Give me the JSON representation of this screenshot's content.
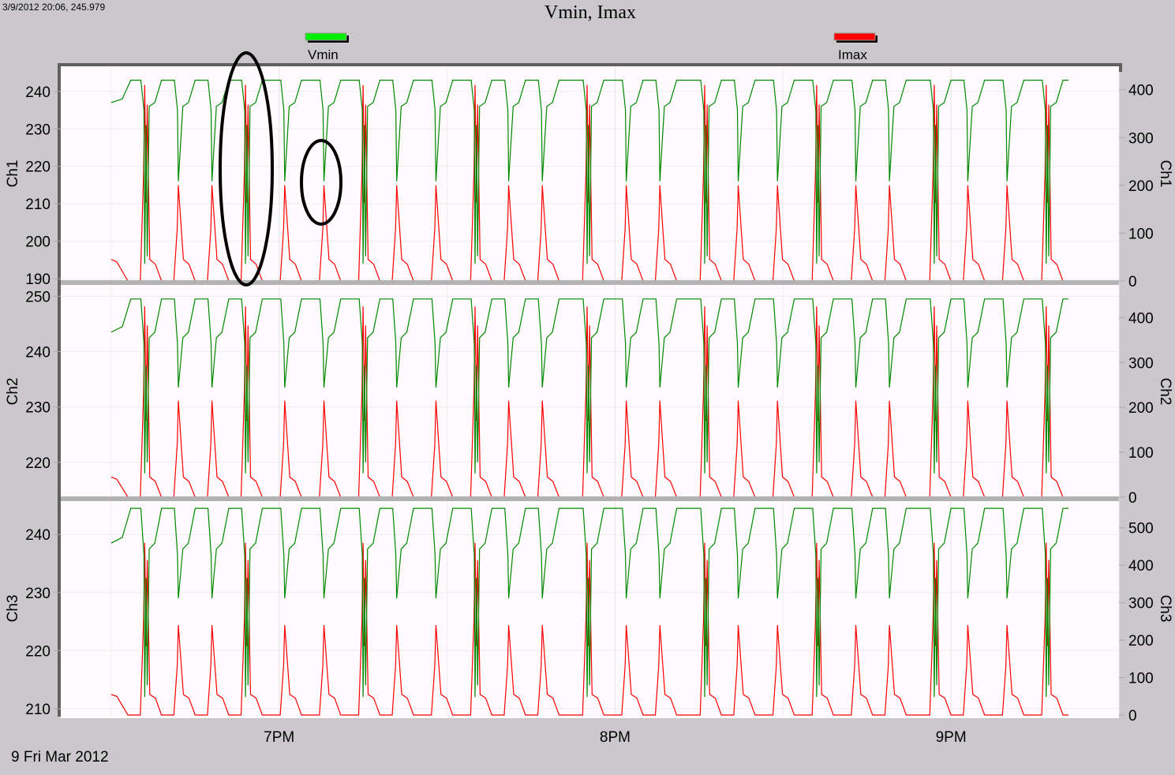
{
  "status_readout": "3/9/2012 20:06, 245.979",
  "date_label": "9 Fri Mar 2012",
  "chart_data": {
    "type": "line",
    "title": "Vmin, Imax",
    "legend": {
      "placement": "top",
      "entries": [
        {
          "name": "Vmin",
          "color": "#00ee00"
        },
        {
          "name": "Imax",
          "color": "#ff0000"
        }
      ]
    },
    "series_colors": {
      "Vmin": "#008800",
      "Imax": "#ff0000"
    },
    "grid": true,
    "x": {
      "type": "time",
      "xlim": [
        "18:21",
        "21:30"
      ],
      "tick_labels": [
        "7PM",
        "8PM",
        "9PM"
      ],
      "ticks": [
        "19:00",
        "20:00",
        "21:00"
      ],
      "data_start": "18:30",
      "data_end": "21:21"
    },
    "cycles": [
      {
        "time": "18:36",
        "deep": true
      },
      {
        "time": "18:42",
        "deep": false
      },
      {
        "time": "18:48",
        "deep": false
      },
      {
        "time": "18:54",
        "deep": true
      },
      {
        "time": "19:01",
        "deep": false
      },
      {
        "time": "19:08",
        "deep": false
      },
      {
        "time": "19:15",
        "deep": true
      },
      {
        "time": "19:21",
        "deep": false
      },
      {
        "time": "19:28",
        "deep": false
      },
      {
        "time": "19:35",
        "deep": true
      },
      {
        "time": "19:41",
        "deep": false
      },
      {
        "time": "19:47",
        "deep": false
      },
      {
        "time": "19:55",
        "deep": true
      },
      {
        "time": "20:02",
        "deep": false
      },
      {
        "time": "20:08",
        "deep": false
      },
      {
        "time": "20:16",
        "deep": true
      },
      {
        "time": "20:22",
        "deep": false
      },
      {
        "time": "20:29",
        "deep": false
      },
      {
        "time": "20:36",
        "deep": true
      },
      {
        "time": "20:43",
        "deep": false
      },
      {
        "time": "20:49",
        "deep": false
      },
      {
        "time": "20:57",
        "deep": true
      },
      {
        "time": "21:03",
        "deep": false
      },
      {
        "time": "21:10",
        "deep": false
      },
      {
        "time": "21:17",
        "deep": true
      }
    ],
    "panels": [
      {
        "name": "Ch1",
        "left_label": "Ch1",
        "right_label": "Ch1",
        "vmin_ylim": [
          189.4,
          246.7
        ],
        "imax_ylim": [
          0,
          449
        ],
        "left_ticks": [
          "240",
          "230",
          "220",
          "210",
          "200",
          "190"
        ],
        "right_ticks": [
          "400",
          "300",
          "200",
          "100",
          "0"
        ],
        "vmin_high": 243,
        "vmin_low": 216,
        "vmin_deep": 194,
        "imax_peak": 200,
        "imax_deep": 410,
        "imax_tail": 45
      },
      {
        "name": "Ch2",
        "left_label": "Ch2",
        "right_label": "Ch2",
        "vmin_ylim": [
          213.7,
          251.9
        ],
        "imax_ylim": [
          0,
          471
        ],
        "left_ticks": [
          "250",
          "240",
          "230",
          "220"
        ],
        "right_ticks": [
          "400",
          "300",
          "200",
          "100",
          "0"
        ],
        "vmin_high": 249.5,
        "vmin_low": 233.5,
        "vmin_deep": 218,
        "imax_peak": 215,
        "imax_deep": 425,
        "imax_tail": 45
      },
      {
        "name": "Ch3",
        "left_label": "Ch3",
        "right_label": "Ch3",
        "vmin_ylim": [
          208.9,
          245.6
        ],
        "imax_ylim": [
          0,
          569
        ],
        "left_ticks": [
          "240",
          "230",
          "220",
          "210"
        ],
        "right_ticks": [
          "500",
          "400",
          "300",
          "200",
          "100",
          "0"
        ],
        "vmin_high": 244.5,
        "vmin_low": 229,
        "vmin_deep": 212,
        "imax_peak": 240,
        "imax_deep": 460,
        "imax_tail": 55
      }
    ]
  }
}
